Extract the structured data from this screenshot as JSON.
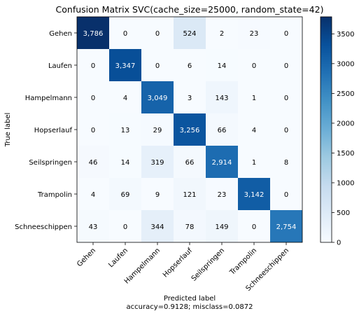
{
  "chart_data": {
    "type": "heatmap",
    "title": "Confusion Matrix SVC(cache_size=25000, random_state=42)",
    "ylabel": "True label",
    "xlabel": "Predicted label",
    "xlabel_sub": "accuracy=0.9128; misclass=0.0872",
    "classes": [
      "Gehen",
      "Laufen",
      "Hampelmann",
      "Hopserlauf",
      "Seilspringen",
      "Trampolin",
      "Schneeschippen"
    ],
    "matrix": [
      [
        3786,
        0,
        0,
        524,
        2,
        23,
        0
      ],
      [
        0,
        3347,
        0,
        6,
        14,
        0,
        0
      ],
      [
        0,
        4,
        3049,
        3,
        143,
        1,
        0
      ],
      [
        0,
        13,
        29,
        3256,
        66,
        4,
        0
      ],
      [
        46,
        14,
        319,
        66,
        2914,
        1,
        8
      ],
      [
        4,
        69,
        9,
        121,
        23,
        3142,
        0
      ],
      [
        43,
        0,
        344,
        78,
        149,
        0,
        2754
      ]
    ],
    "colorbar": {
      "min": 0,
      "max": 3786,
      "ticks": [
        0,
        500,
        1000,
        1500,
        2000,
        2500,
        3000,
        3500
      ]
    },
    "colormap": "Blues",
    "grid": false
  }
}
